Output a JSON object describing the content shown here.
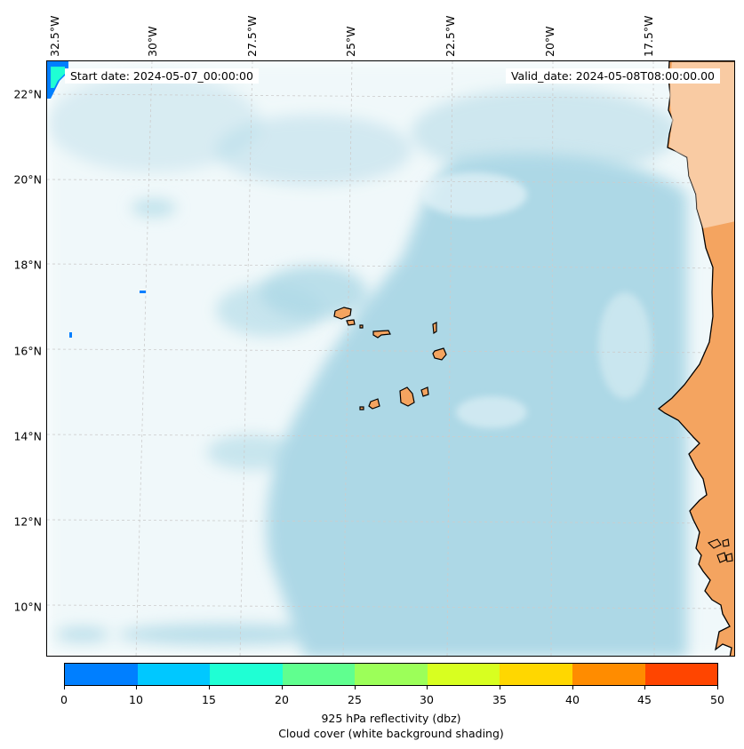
{
  "map": {
    "start_date": "Start date: 2024-05-07_00:00:00",
    "valid_date": "Valid_date: 2024-05-08T08:00:00.00",
    "latitude_labels": [
      "22°N",
      "20°N",
      "18°N",
      "16°N",
      "14°N",
      "12°N",
      "10°N"
    ],
    "longitude_labels": [
      "32.5°W",
      "30°W",
      "27.5°W",
      "25°W",
      "22.5°W",
      "20°W",
      "17.5°W"
    ],
    "colors": {
      "land": "#f4a460",
      "cloud": "#add8e6",
      "coastline": "#000000",
      "gridline": "#cccccc"
    },
    "reflectivity_patches": [
      {
        "color": "#007fff",
        "place": "top-left corner"
      },
      {
        "color": "#1fffd4",
        "place": "top-left corner"
      },
      {
        "color": "#007fff",
        "place": "near 17°N 31°W"
      },
      {
        "color": "#007fff",
        "place": "near 16.5°N 32.5°W"
      }
    ]
  },
  "colorbar": {
    "colors": [
      "#007fff",
      "#00c8ff",
      "#1fffd4",
      "#60ff8f",
      "#9cff59",
      "#d8ff20",
      "#ffd700",
      "#ff8c00",
      "#ff4500"
    ],
    "ticks": [
      "0",
      "10",
      "15",
      "20",
      "25",
      "30",
      "35",
      "40",
      "45",
      "50"
    ],
    "title_line1": "925 hPa reflectivity (dbz)",
    "title_line2": "Cloud cover (white background shading)"
  }
}
